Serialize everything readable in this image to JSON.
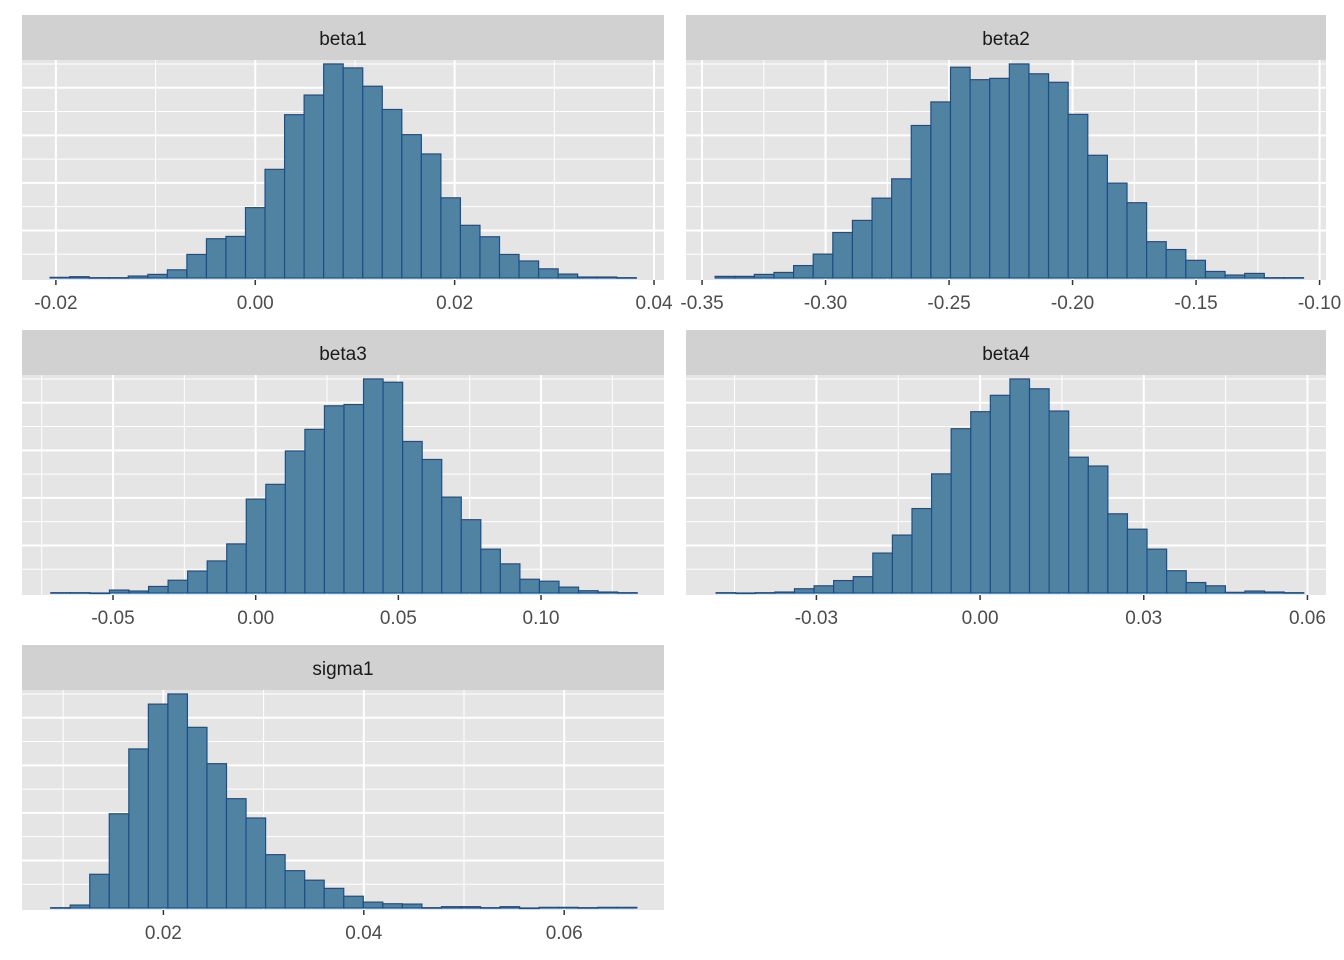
{
  "chart_data": [
    {
      "type": "bar",
      "subtype": "histogram",
      "title": "beta1",
      "xlim": [
        -0.0234,
        0.041
      ],
      "ylim": [
        0,
        660
      ],
      "ticks": [
        -0.02,
        0.0,
        0.02,
        0.04
      ],
      "tick_labels": [
        "-0.02",
        "0.00",
        "0.02",
        "0.04"
      ],
      "bin_start": -0.02058,
      "bin_width": 0.00196,
      "counts": [
        2,
        4,
        1,
        1,
        6,
        11,
        25,
        72,
        120,
        127,
        215,
        332,
        499,
        559,
        654,
        642,
        586,
        515,
        438,
        379,
        245,
        161,
        126,
        72,
        52,
        28,
        12,
        3,
        3,
        1
      ]
    },
    {
      "type": "bar",
      "subtype": "histogram",
      "title": "beta2",
      "xlim": [
        -0.3565,
        -0.0974
      ],
      "ylim": [
        0,
        660
      ],
      "ticks": [
        -0.35,
        -0.3,
        -0.25,
        -0.2,
        -0.15,
        -0.1
      ],
      "tick_labels": [
        "-0.35",
        "-0.30",
        "-0.25",
        "-0.20",
        "-0.15",
        "-0.10"
      ],
      "bin_start": -0.3447,
      "bin_width": 0.00794,
      "counts": [
        5,
        5,
        11,
        17,
        38,
        73,
        139,
        176,
        244,
        303,
        466,
        538,
        644,
        606,
        610,
        654,
        624,
        598,
        500,
        375,
        290,
        230,
        111,
        87,
        54,
        20,
        9,
        14,
        1,
        1
      ]
    },
    {
      "type": "bar",
      "subtype": "histogram",
      "title": "beta3",
      "xlim": [
        -0.0819,
        0.1431
      ],
      "ylim": [
        0,
        660
      ],
      "ticks": [
        -0.05,
        0.0,
        0.05,
        0.1
      ],
      "tick_labels": [
        "-0.05",
        "0.00",
        "0.05",
        "0.10"
      ],
      "bin_start": -0.0718,
      "bin_width": 0.00685,
      "counts": [
        1,
        1,
        0,
        9,
        6,
        20,
        39,
        67,
        98,
        150,
        287,
        332,
        434,
        500,
        572,
        576,
        654,
        644,
        463,
        408,
        293,
        224,
        134,
        89,
        42,
        36,
        18,
        7,
        3,
        1
      ]
    },
    {
      "type": "bar",
      "subtype": "histogram",
      "title": "beta4",
      "xlim": [
        -0.0539,
        0.0634
      ],
      "ylim": [
        0,
        660
      ],
      "ticks": [
        -0.03,
        0.0,
        0.03,
        0.06
      ],
      "tick_labels": [
        "-0.03",
        "0.00",
        "0.03",
        "0.06"
      ],
      "bin_start": -0.04838,
      "bin_width": 0.00359,
      "counts": [
        1,
        0,
        1,
        3,
        13,
        22,
        38,
        50,
        122,
        177,
        258,
        364,
        502,
        554,
        604,
        654,
        624,
        556,
        415,
        388,
        242,
        195,
        134,
        68,
        32,
        22,
        2,
        6,
        3,
        1
      ]
    },
    {
      "type": "bar",
      "subtype": "histogram",
      "title": "sigma1",
      "xlim": [
        0.00589,
        0.06996
      ],
      "ylim": [
        0,
        660
      ],
      "ticks": [
        0.02,
        0.04,
        0.06
      ],
      "tick_labels": [
        "0.02",
        "0.04",
        "0.06"
      ],
      "bin_start": 0.00875,
      "bin_width": 0.00195,
      "counts": [
        1,
        9,
        103,
        288,
        486,
        623,
        654,
        552,
        441,
        334,
        275,
        163,
        114,
        85,
        60,
        36,
        18,
        13,
        12,
        1,
        4,
        4,
        1,
        4,
        0,
        2,
        2,
        1,
        2,
        2
      ]
    }
  ],
  "colors": {
    "panel_bg": "#e5e5e5",
    "strip_bg": "#d1d1d1",
    "grid": "#ffffff",
    "bar_fill": "#5083a1",
    "bar_stroke": "#1b4f8a"
  }
}
